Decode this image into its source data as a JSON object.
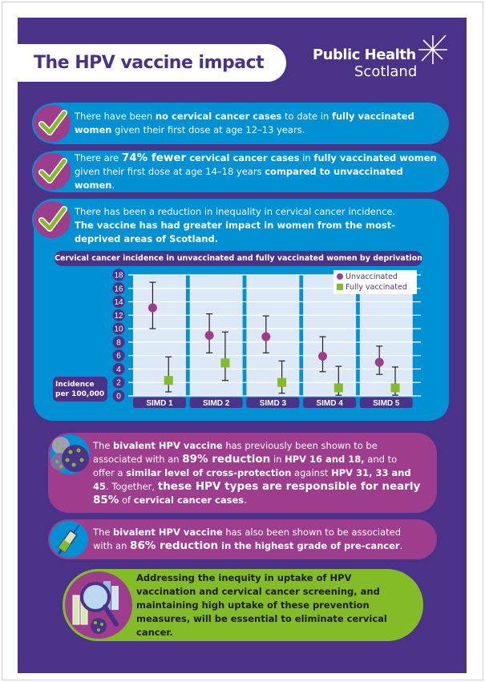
{
  "title": "The HPV vaccine impact",
  "logo": {
    "line1": "Public Health",
    "line2": "Scotland"
  },
  "colors": {
    "purple": "#4b3289",
    "blue": "#0090d4",
    "magenta": "#9e3d8d",
    "green": "#84bc27"
  },
  "facts": [
    {
      "icon": "check-icon",
      "segments": [
        {
          "t": "There have been ",
          "b": false
        },
        {
          "t": "no cervical cancer cases",
          "b": true
        },
        {
          "t": " to date in ",
          "b": false
        },
        {
          "t": "fully vaccinated women",
          "b": true
        },
        {
          "t": " given their first dose at age 12–13 years.",
          "b": false
        }
      ]
    },
    {
      "icon": "check-icon",
      "segments": [
        {
          "t": "There are ",
          "b": false
        },
        {
          "t": "74% fewer",
          "b": true
        },
        {
          "t": " cervical cancer cases",
          "b": true
        },
        {
          "t": " in ",
          "b": false
        },
        {
          "t": "fully vaccinated women",
          "b": true
        },
        {
          "t": " given their first dose at age 14–18 years ",
          "b": false
        },
        {
          "t": "compared to unvaccinated women",
          "b": true
        },
        {
          "t": ".",
          "b": false
        }
      ]
    },
    {
      "icon": "check-icon",
      "segments": [
        {
          "t": "There has been a reduction in inequality in cervical cancer incidence. ",
          "b": false
        },
        {
          "t": "The vaccine has had greater impact in women from the most-deprived areas of Scotland.",
          "b": true
        }
      ]
    },
    {
      "icon": "virus-icon",
      "segments": [
        {
          "t": "The ",
          "b": false
        },
        {
          "t": "bivalent HPV vaccine",
          "b": true
        },
        {
          "t": " has previously been shown to be associated with an ",
          "b": false
        },
        {
          "t": "89% reduction",
          "b": true
        },
        {
          "t": " in ",
          "b": false
        },
        {
          "t": "HPV 16 and 18,",
          "b": true
        },
        {
          "t": " and to offer a ",
          "b": false
        },
        {
          "t": "similar level of cross-protection",
          "b": true
        },
        {
          "t": " against ",
          "b": false
        },
        {
          "t": "HPV 31, 33 and 45",
          "b": true
        },
        {
          "t": ". Together, ",
          "b": false
        },
        {
          "t": "these HPV types are responsible for nearly 85%",
          "b": true
        },
        {
          "t": " of ",
          "b": false
        },
        {
          "t": "cervical cancer cases",
          "b": true
        },
        {
          "t": ".",
          "b": false
        }
      ]
    },
    {
      "icon": "syringe-icon",
      "segments": [
        {
          "t": "The ",
          "b": false
        },
        {
          "t": "bivalent HPV vaccine",
          "b": true
        },
        {
          "t": " has also been shown to be associated with an ",
          "b": false
        },
        {
          "t": "86% reduction",
          "b": true
        },
        {
          "t": " in the highest grade of pre-cancer",
          "b": true
        },
        {
          "t": ".",
          "b": false
        }
      ]
    },
    {
      "icon": "magnifier-chart-icon",
      "segments": [
        {
          "t": "Addressing the inequity in uptake of HPV vaccination and cervical cancer screening, and maintaining high uptake of these prevention measures, will be essential to eliminate cervical cancer.",
          "b": true
        }
      ]
    }
  ],
  "chart_data": {
    "type": "scatter",
    "title": "Cervical cancer incidence in unvaccinated and fully vaccinated women by deprivation",
    "ylabel": "Incidence per 100,000",
    "categories": [
      "SIMD 1",
      "SIMD 2",
      "SIMD 3",
      "SIMD 4",
      "SIMD 5"
    ],
    "ylim": [
      0,
      18
    ],
    "yticks": [
      0,
      2,
      4,
      6,
      8,
      10,
      12,
      14,
      16,
      18
    ],
    "grid": true,
    "legend_position": "top-right",
    "series": [
      {
        "name": "Unvaccinated",
        "color": "#9e3d8d",
        "marker": "circle",
        "values": [
          13.1,
          9.0,
          8.8,
          5.9,
          5.0
        ],
        "lower": [
          10.0,
          6.4,
          6.4,
          3.6,
          3.2
        ],
        "upper": [
          16.9,
          12.2,
          11.9,
          8.8,
          7.4
        ]
      },
      {
        "name": "Fully vaccinated",
        "color": "#84bc27",
        "marker": "square",
        "values": [
          2.3,
          4.9,
          2.0,
          1.2,
          1.2
        ],
        "lower": [
          0.6,
          2.3,
          0.4,
          0.1,
          0.1
        ],
        "upper": [
          5.8,
          9.5,
          5.2,
          4.4,
          4.3
        ]
      }
    ]
  }
}
